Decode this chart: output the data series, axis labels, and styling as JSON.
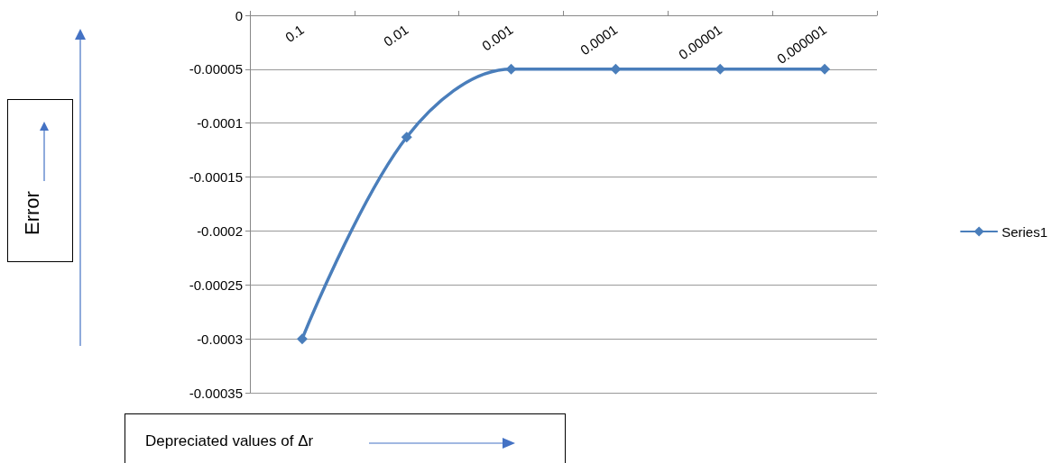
{
  "chart_data": {
    "type": "line",
    "xlabel": "Depreciated values of Δr",
    "annotations": [
      "Error"
    ],
    "categories": [
      "0.1",
      "0.01",
      "0.001",
      "0.0001",
      "0.00001",
      "0.000001"
    ],
    "series": [
      {
        "name": "Series1",
        "color": "#4a7ebb",
        "values": [
          -0.0003,
          -0.000113,
          -5e-05,
          -5e-05,
          -5e-05,
          -5e-05
        ]
      }
    ],
    "ylim": [
      -0.00035,
      0
    ],
    "yticks": [
      0,
      {
        "value": -5e-05,
        "label": "-0.00005"
      },
      -0.0001,
      -0.00015,
      -0.0002,
      -0.00025,
      -0.0003,
      -0.00035
    ],
    "grid": "y",
    "legend": "right",
    "marker": "diamond",
    "line_style": "solid"
  }
}
